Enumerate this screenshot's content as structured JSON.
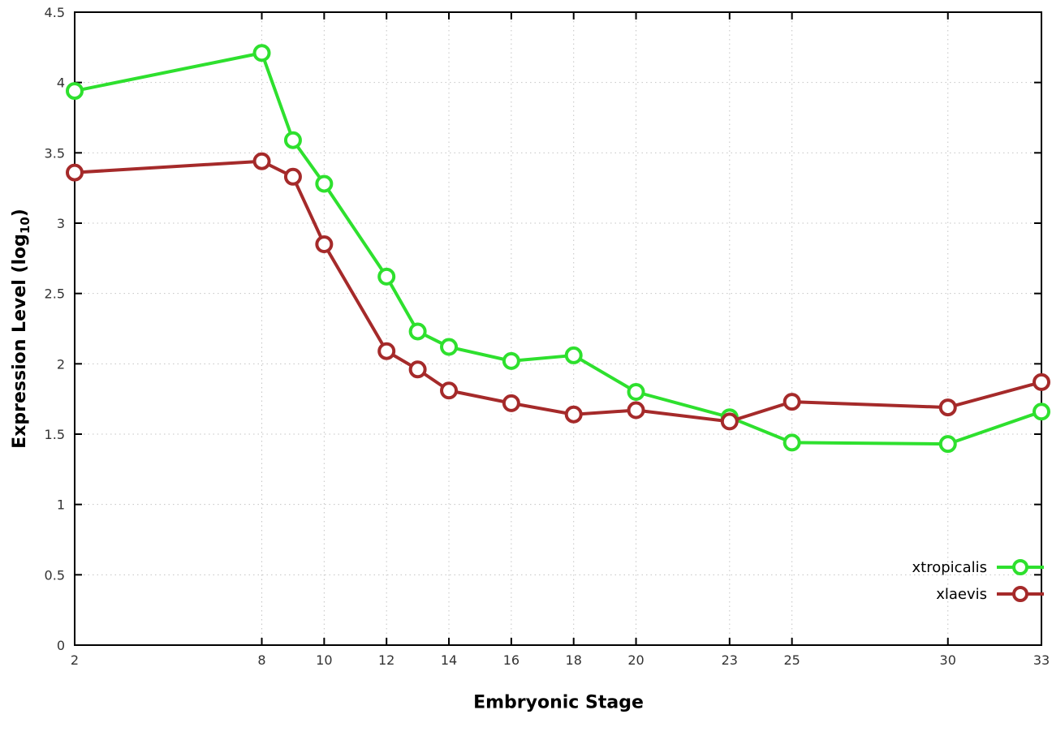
{
  "chart_data": {
    "type": "line",
    "title": "",
    "xlabel": "Embryonic Stage",
    "ylabel": "Expression Level (log10)",
    "ylabel_parts": {
      "main": "Expression Level (log",
      "sub": "10",
      "suffix": ")"
    },
    "x": [
      2,
      8,
      9,
      10,
      12,
      13,
      14,
      16,
      18,
      20,
      23,
      25,
      30,
      33
    ],
    "x_tick_labels": [
      "2",
      "8",
      "10",
      "12",
      "14",
      "16",
      "18",
      "20",
      "23",
      "25",
      "30",
      "33"
    ],
    "x_ticks": [
      2,
      8,
      10,
      12,
      14,
      16,
      18,
      20,
      23,
      25,
      30,
      33
    ],
    "y_tick_labels": [
      "0",
      "0.5",
      "1",
      "1.5",
      "2",
      "2.5",
      "3",
      "3.5",
      "4",
      "4.5"
    ],
    "y_ticks": [
      0,
      0.5,
      1,
      1.5,
      2,
      2.5,
      3,
      3.5,
      4,
      4.5
    ],
    "xlim": [
      2,
      33
    ],
    "ylim": [
      0,
      4.5
    ],
    "grid": true,
    "legend_position": "bottom-right",
    "series": [
      {
        "name": "xtropicalis",
        "color": "#2ee02e",
        "marker": "open-circle",
        "values": [
          3.94,
          4.21,
          3.59,
          3.28,
          2.62,
          2.23,
          2.12,
          2.02,
          2.06,
          1.8,
          1.62,
          1.44,
          1.43,
          1.66
        ]
      },
      {
        "name": "xlaevis",
        "color": "#a52a2a",
        "marker": "open-circle",
        "values": [
          3.36,
          3.44,
          3.33,
          2.85,
          2.09,
          1.96,
          1.81,
          1.72,
          1.64,
          1.67,
          1.59,
          1.73,
          1.69,
          1.87
        ]
      }
    ]
  }
}
